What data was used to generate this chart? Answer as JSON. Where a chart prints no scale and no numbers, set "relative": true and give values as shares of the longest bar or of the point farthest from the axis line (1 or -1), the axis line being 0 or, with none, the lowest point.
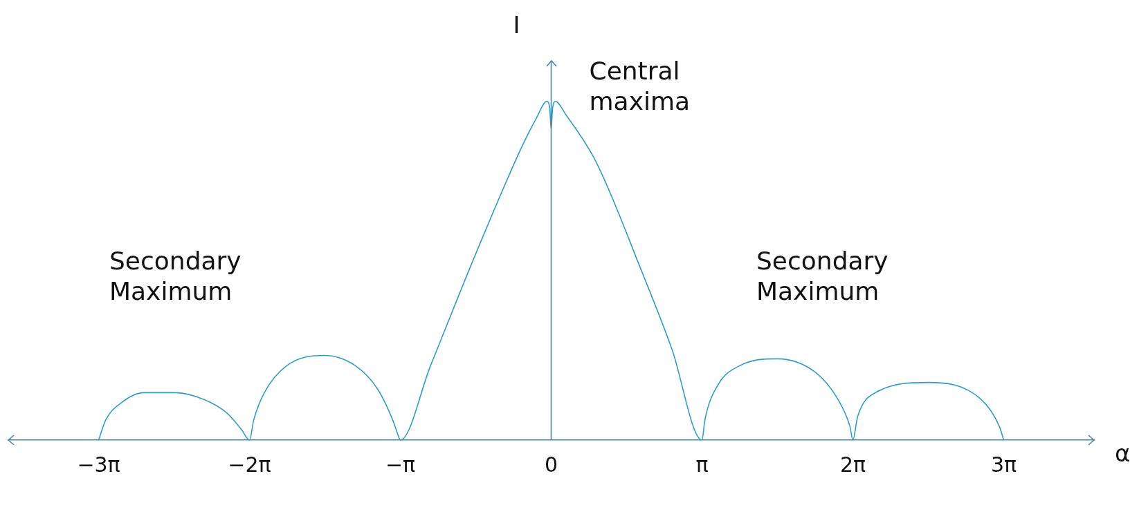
{
  "chart_data": {
    "type": "line",
    "relative": true,
    "xlabel": "α",
    "ylabel": "I",
    "xlim": [
      -11.3,
      11.3
    ],
    "xticks": [
      {
        "value": -9.42,
        "label": "−3π"
      },
      {
        "value": -6.28,
        "label": "−2π"
      },
      {
        "value": -3.14,
        "label": "−π"
      },
      0,
      {
        "value": 3.14,
        "label": "π"
      },
      {
        "value": 6.28,
        "label": "2π"
      },
      {
        "value": 9.42,
        "label": "3π"
      }
    ],
    "series": [
      {
        "color": "#2e9fc4",
        "x": [
          -9.42,
          -9.27,
          -8.95,
          -8.48,
          -7.85,
          -7.23,
          -6.75,
          -6.44,
          -6.28,
          -6.19,
          -5.97,
          -5.5,
          -4.71,
          -4.08,
          -3.61,
          -3.3,
          -3.2,
          -3.14,
          -2.51,
          -1.57,
          -0.63,
          -0.31,
          -0.09,
          -0.03,
          0,
          0.03,
          0.09,
          0.31,
          0.94,
          1.88,
          2.51,
          3.14,
          3.2,
          3.46,
          3.93,
          4.71,
          5.5,
          5.97,
          6.22,
          6.28,
          6.38,
          6.75,
          7.85,
          8.95,
          9.33,
          9.42
        ],
        "values": [
          0,
          0.06,
          0.11,
          0.14,
          0.14,
          0.12,
          0.08,
          0.03,
          0,
          0.06,
          0.14,
          0.22,
          0.25,
          0.22,
          0.15,
          0.06,
          0.02,
          0,
          0.22,
          0.55,
          0.86,
          0.95,
          1,
          0.98,
          0.92,
          0.98,
          1,
          0.96,
          0.82,
          0.5,
          0.27,
          0,
          0.06,
          0.16,
          0.22,
          0.24,
          0.2,
          0.12,
          0.04,
          0,
          0.07,
          0.14,
          0.17,
          0.12,
          0.04,
          0
        ]
      }
    ],
    "annotations": [
      "Central\nmaxima",
      "Secondary\nMaximum",
      "Secondary\nMaximum"
    ],
    "ref_lines": [
      {
        "axis": "x",
        "value": 0,
        "color": "#4a86a0"
      }
    ],
    "grid": false,
    "legend": false,
    "marker": "none",
    "line_style": "solid"
  }
}
